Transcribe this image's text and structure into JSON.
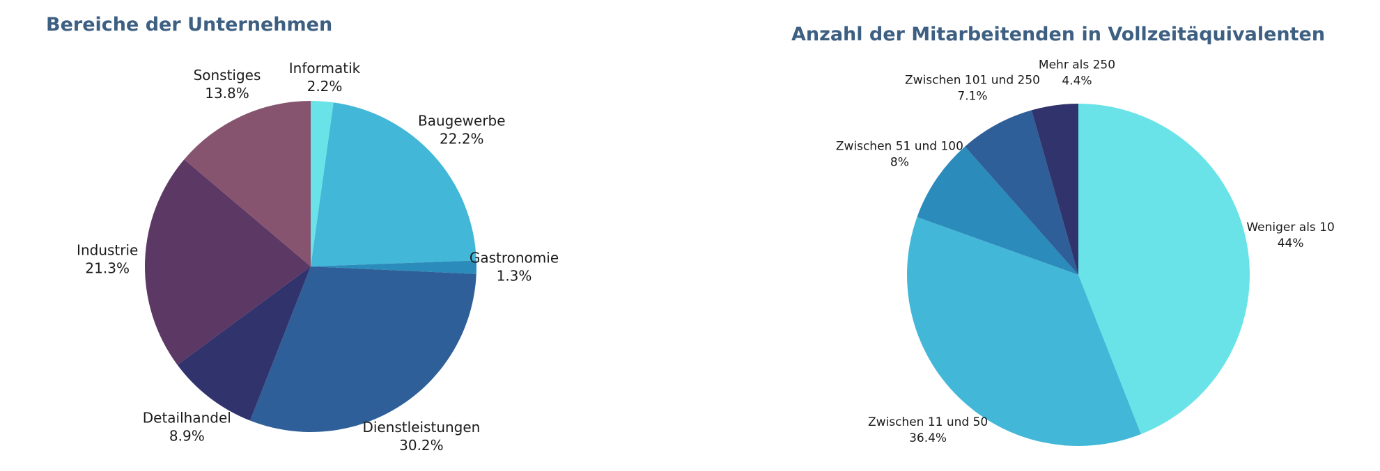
{
  "chart_data": [
    {
      "type": "pie",
      "title": "Bereiche der Unternehmen",
      "slices": [
        {
          "label": "Informatik",
          "value": 2.2,
          "value_label": "2.2%",
          "color": "#6ae3e8"
        },
        {
          "label": "Baugewerbe",
          "value": 22.2,
          "value_label": "22.2%",
          "color": "#42b7d7"
        },
        {
          "label": "Gastronomie",
          "value": 1.3,
          "value_label": "1.3%",
          "color": "#2b8bbb"
        },
        {
          "label": "Dienstleistungen",
          "value": 30.2,
          "value_label": "30.2%",
          "color": "#2e5f98"
        },
        {
          "label": "Detailhandel",
          "value": 8.9,
          "value_label": "8.9%",
          "color": "#31336d"
        },
        {
          "label": "Industrie",
          "value": 21.3,
          "value_label": "21.3%",
          "color": "#5c3865"
        },
        {
          "label": "Sonstiges",
          "value": 13.8,
          "value_label": "13.8%",
          "color": "#87546f"
        }
      ]
    },
    {
      "type": "pie",
      "title": "Anzahl der Mitarbeitenden in Vollzeitäquivalenten",
      "slices": [
        {
          "label": "Weniger als 10",
          "value": 44,
          "value_label": "44%",
          "color": "#6ae3e8"
        },
        {
          "label": "Zwischen 11 und 50",
          "value": 36.4,
          "value_label": "36.4%",
          "color": "#42b7d7"
        },
        {
          "label": "Zwischen 51 und 100",
          "value": 8,
          "value_label": "8%",
          "color": "#2b8bbb"
        },
        {
          "label": "Zwischen 101 und 250",
          "value": 7.1,
          "value_label": "7.1%",
          "color": "#2e5f98"
        },
        {
          "label": "Mehr als 250",
          "value": 4.4,
          "value_label": "4.4%",
          "color": "#31336d"
        }
      ]
    }
  ]
}
